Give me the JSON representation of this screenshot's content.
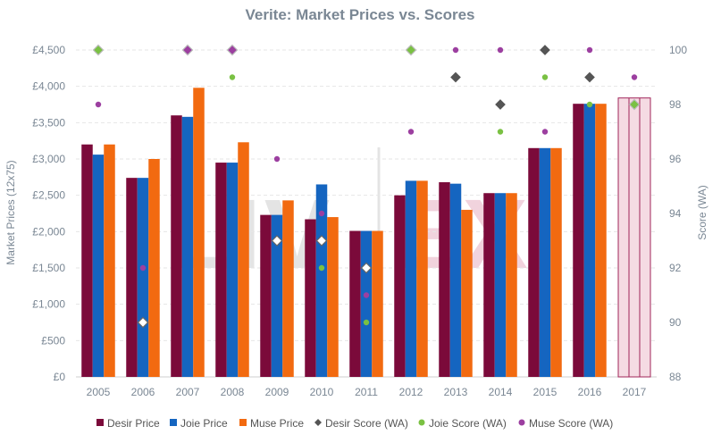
{
  "chart_data": {
    "type": "bar",
    "title": "Verite: Market Prices vs. Scores",
    "ylabel": "Market Prices (12x75)",
    "y2label": "Score (WA)",
    "categories": [
      "2005",
      "2006",
      "2007",
      "2008",
      "2009",
      "2010",
      "2011",
      "2012",
      "2013",
      "2014",
      "2015",
      "2016",
      "2017"
    ],
    "ylim": [
      0,
      4500
    ],
    "y2lim": [
      88,
      100
    ],
    "yticks": [
      "£0",
      "£500",
      "£1,000",
      "£1,500",
      "£2,000",
      "£2,500",
      "£3,000",
      "£3,500",
      "£4,000",
      "£4,500"
    ],
    "yticks_values": [
      0,
      500,
      1000,
      1500,
      2000,
      2500,
      3000,
      3500,
      4000,
      4500
    ],
    "y2ticks": [
      "88",
      "90",
      "92",
      "94",
      "96",
      "98",
      "100"
    ],
    "y2ticks_values": [
      88,
      90,
      92,
      94,
      96,
      98,
      100
    ],
    "grid": true,
    "legend_position": "bottom",
    "watermark": "LIV-EX",
    "bar_series": [
      {
        "name": "Desir Price",
        "color": "#7b0a3a",
        "values": [
          3200,
          2740,
          3600,
          2950,
          2230,
          2170,
          2010,
          2500,
          2680,
          2530,
          3150,
          3760,
          null
        ]
      },
      {
        "name": "Joie Price",
        "color": "#1565c0",
        "values": [
          3060,
          2740,
          3580,
          2950,
          2230,
          2650,
          2010,
          2700,
          2660,
          2530,
          3150,
          3760,
          null
        ]
      },
      {
        "name": "Muse Price",
        "color": "#f26a10",
        "values": [
          3200,
          3000,
          3980,
          3230,
          2430,
          2200,
          2010,
          2700,
          2300,
          2530,
          3150,
          3760,
          null
        ]
      }
    ],
    "highlight_bar": {
      "category": "2017",
      "value": 3840,
      "fill": "#f5dbe3",
      "stroke": "#a0255a"
    },
    "score_series": [
      {
        "name": "Desir Score (WA)",
        "color": "#555555",
        "marker": "diamond",
        "values": [
          null,
          90,
          null,
          null,
          93,
          93,
          92,
          null,
          99,
          98,
          100,
          99,
          null
        ]
      },
      {
        "name": "Joie Score (WA)",
        "color": "#7ac143",
        "marker": "dot",
        "values": [
          null,
          null,
          null,
          99,
          null,
          92,
          90,
          null,
          null,
          97,
          99,
          98,
          98
        ]
      },
      {
        "name": "Muse Score (WA)",
        "color": "#9c3fa0",
        "marker": "dot",
        "values": [
          98,
          92,
          100,
          100,
          96,
          94,
          91,
          97,
          100,
          100,
          97,
          100,
          99
        ]
      }
    ],
    "highlight_markers": [
      {
        "category": "2005",
        "value": 100,
        "color": "#7ac143"
      },
      {
        "category": "2007",
        "value": 100,
        "color": "#9c3fa0"
      },
      {
        "category": "2008",
        "value": 100,
        "color": "#9c3fa0"
      },
      {
        "category": "2012",
        "value": 100,
        "color": "#7ac143"
      },
      {
        "category": "2017",
        "value": 98,
        "color": "#7ac143"
      }
    ]
  }
}
